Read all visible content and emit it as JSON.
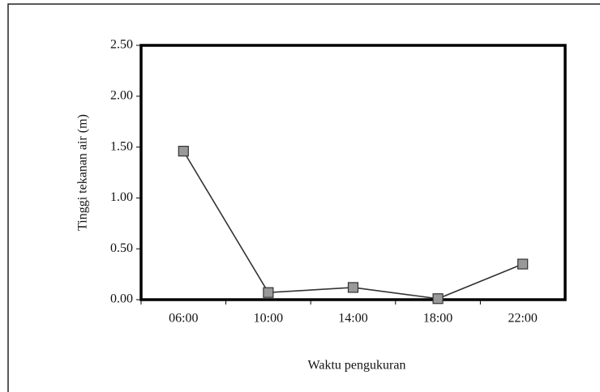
{
  "chart_data": {
    "type": "line",
    "x_label": "Waktu pengukuran",
    "y_label": "Tinggi tekanan air (m)",
    "categories": [
      "06:00",
      "10:00",
      "14:00",
      "18:00",
      "22:00"
    ],
    "series": [
      {
        "color": "#333333",
        "values": [
          1.46,
          0.07,
          0.12,
          0.01,
          0.35
        ]
      }
    ],
    "ylim": [
      0,
      2.5
    ],
    "yticks": [
      {
        "value": 0,
        "label": "0.00"
      },
      {
        "value": 0.5,
        "label": "0.50"
      },
      {
        "value": 1,
        "label": "1.00"
      },
      {
        "value": 1.5,
        "label": "1.50"
      },
      {
        "value": 2,
        "label": "2.00"
      },
      {
        "value": 2.5,
        "label": "2.50"
      }
    ]
  }
}
